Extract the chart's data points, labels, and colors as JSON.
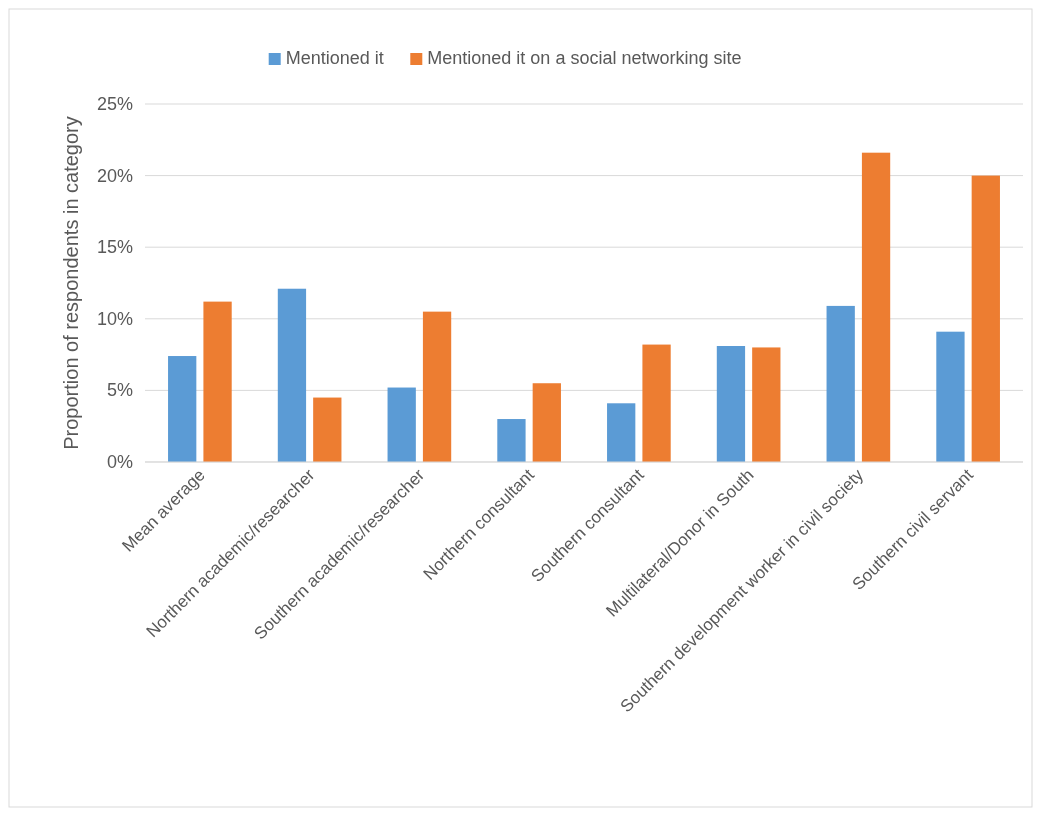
{
  "chart_data": {
    "type": "bar",
    "ylabel": "Proportion of respondents in category",
    "categories": [
      "Mean average",
      "Northern academic/researcher",
      "Southern academic/researcher",
      "Northern consultant",
      "Southern consultant",
      "Multilateral/Donor in South",
      "Southern development worker in civil society",
      "Southern civil servant"
    ],
    "series": [
      {
        "name": "Mentioned it",
        "color": "#5b9bd5",
        "values": [
          7.4,
          12.1,
          5.2,
          3.0,
          4.1,
          8.1,
          10.9,
          9.1
        ]
      },
      {
        "name": "Mentioned it on a social networking site",
        "color": "#ed7d31",
        "values": [
          11.2,
          4.5,
          10.5,
          5.5,
          8.2,
          8.0,
          21.6,
          20.0
        ]
      }
    ],
    "ylim": [
      0,
      25
    ],
    "yticks": [
      {
        "value": 0,
        "label": "0%"
      },
      {
        "value": 5,
        "label": "5%"
      },
      {
        "value": 10,
        "label": "10%"
      },
      {
        "value": 15,
        "label": "15%"
      },
      {
        "value": 20,
        "label": "20%"
      },
      {
        "value": 25,
        "label": "25%"
      }
    ],
    "grid": "y",
    "legend": "top"
  }
}
